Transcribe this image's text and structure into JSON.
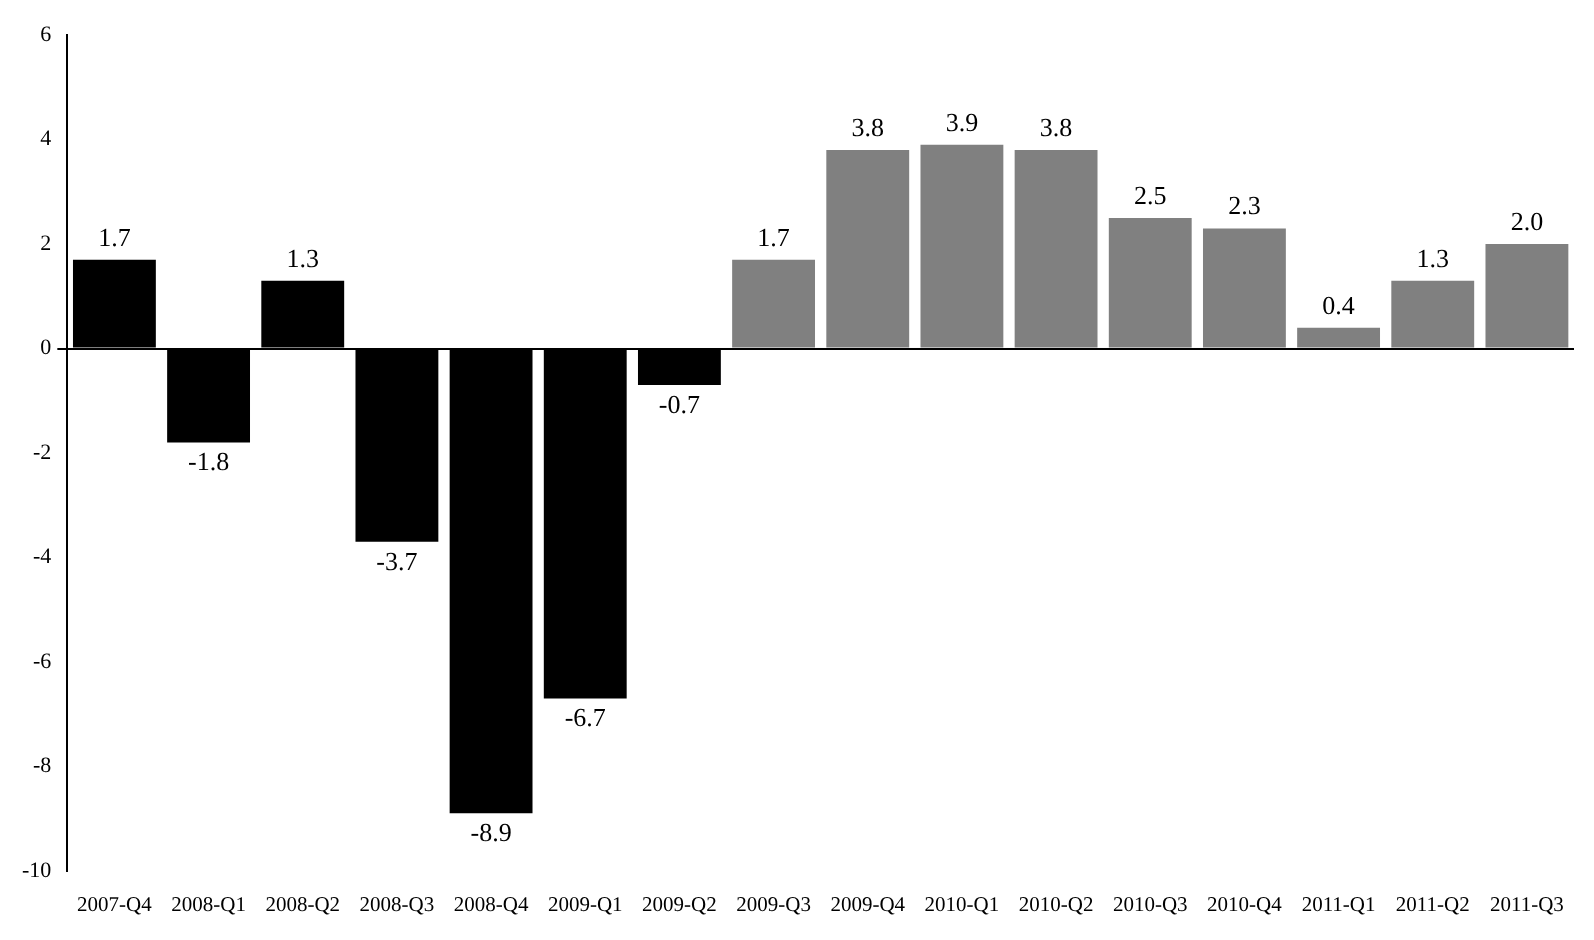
{
  "chart_data": {
    "type": "bar",
    "categories": [
      "2007-Q4",
      "2008-Q1",
      "2008-Q2",
      "2008-Q3",
      "2008-Q4",
      "2009-Q1",
      "2009-Q2",
      "2009-Q3",
      "2009-Q4",
      "2010-Q1",
      "2010-Q2",
      "2010-Q3",
      "2010-Q4",
      "2011-Q1",
      "2011-Q2",
      "2011-Q3"
    ],
    "values": [
      1.7,
      -1.8,
      1.3,
      -3.7,
      -8.9,
      -6.7,
      -0.7,
      1.7,
      3.8,
      3.9,
      3.8,
      2.5,
      2.3,
      0.4,
      1.3,
      2.0
    ],
    "value_labels": [
      "1.7",
      "-1.8",
      "1.3",
      "-3.7",
      "-8.9",
      "-6.7",
      "-0.7",
      "1.7",
      "3.8",
      "3.9",
      "3.8",
      "2.5",
      "2.3",
      "0.4",
      "1.3",
      "2.0"
    ],
    "colors": [
      "#000000",
      "#000000",
      "#000000",
      "#000000",
      "#000000",
      "#000000",
      "#000000",
      "#808080",
      "#808080",
      "#808080",
      "#808080",
      "#808080",
      "#808080",
      "#808080",
      "#808080",
      "#808080"
    ],
    "ylim": [
      -10,
      6
    ],
    "yticks": [
      -10,
      -8,
      -6,
      -4,
      -2,
      0,
      2,
      4,
      6
    ],
    "legend": false
  }
}
